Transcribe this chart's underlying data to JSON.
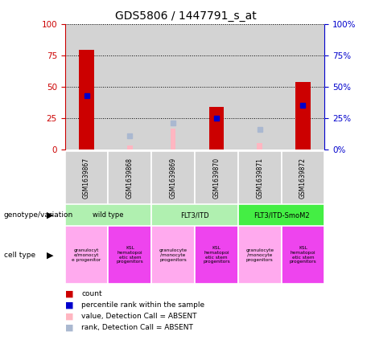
{
  "title": "GDS5806 / 1447791_s_at",
  "samples": [
    "GSM1639867",
    "GSM1639868",
    "GSM1639869",
    "GSM1639870",
    "GSM1639871",
    "GSM1639872"
  ],
  "red_bars": [
    79,
    0,
    0,
    34,
    0,
    54
  ],
  "blue_dots": [
    43,
    0,
    0,
    25,
    0,
    35
  ],
  "pink_bars": [
    0,
    3,
    17,
    0,
    5,
    0
  ],
  "lavender_dots": [
    0,
    11,
    21,
    0,
    16,
    0
  ],
  "ylim": [
    0,
    100
  ],
  "yticks": [
    0,
    25,
    50,
    75,
    100
  ],
  "left_axis_color": "#cc0000",
  "right_axis_color": "#0000cc",
  "background_color": "#ffffff",
  "plot_bg": "#d3d3d3",
  "genotype_groups": [
    {
      "label": "wild type",
      "start": 0,
      "end": 1,
      "color": "#b0f0b0"
    },
    {
      "label": "FLT3/ITD",
      "start": 2,
      "end": 3,
      "color": "#b0f0b0"
    },
    {
      "label": "FLT3/ITD-SmoM2",
      "start": 4,
      "end": 5,
      "color": "#44ee44"
    }
  ],
  "cell_colors": [
    "#ffaaee",
    "#ee44ee",
    "#ffaaee",
    "#ee44ee",
    "#ffaaee",
    "#ee44ee"
  ],
  "cell_labels": [
    "granulocyt\ne/monocyt\ne progenitor",
    "KSL\nhematopoi\netic stem\nprogenitors",
    "granulocyte\n/monocyte\nprogenitors",
    "KSL\nhematopoi\netic stem\nprogenitors",
    "granulocyte\n/monocyte\nprogenitors",
    "KSL\nhematopoi\netic stem\nprogenitors"
  ],
  "legend_items": [
    {
      "label": "count",
      "color": "#cc0000"
    },
    {
      "label": "percentile rank within the sample",
      "color": "#0000cc"
    },
    {
      "label": "value, Detection Call = ABSENT",
      "color": "#ffb6c1"
    },
    {
      "label": "rank, Detection Call = ABSENT",
      "color": "#aab8d0"
    }
  ]
}
